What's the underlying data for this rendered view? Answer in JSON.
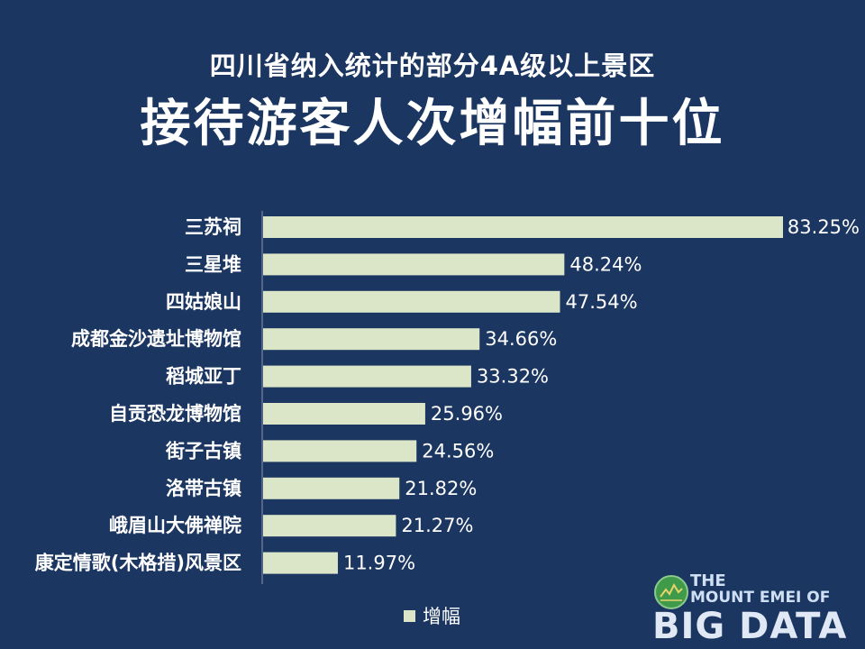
{
  "header": {
    "subtitle": "四川省纳入统计的部分4A级以上景区",
    "title": "接待游客人次增幅前十位"
  },
  "chart_data": {
    "type": "bar",
    "orientation": "horizontal",
    "categories": [
      "三苏祠",
      "三星堆",
      "四姑娘山",
      "成都金沙遗址博物馆",
      "稻城亚丁",
      "自贡恐龙博物馆",
      "街子古镇",
      "洛带古镇",
      "峨眉山大佛禅院",
      "康定情歌(木格措)风景区"
    ],
    "series": [
      {
        "name": "增幅",
        "values": [
          83.25,
          48.24,
          47.54,
          34.66,
          33.32,
          25.96,
          24.56,
          21.82,
          21.27,
          11.97
        ],
        "labels": [
          "83.25%",
          "48.24%",
          "47.54%",
          "34.66%",
          "33.32%",
          "25.96%",
          "24.56%",
          "21.82%",
          "21.27%",
          "11.97%"
        ]
      }
    ],
    "xlim": [
      0,
      83.25
    ],
    "grid": false,
    "legend_position": "bottom",
    "bar_color": "#dbe5c8",
    "text_color": "#ffffff"
  },
  "legend": {
    "label": "增幅"
  },
  "logo": {
    "line1": "THE",
    "line2": "MOUNT EMEI OF",
    "big": "BIG DATA"
  },
  "colors": {
    "background": "#1b3660",
    "bar": "#dbe5c8",
    "logo_green": "#3f9a4a"
  }
}
